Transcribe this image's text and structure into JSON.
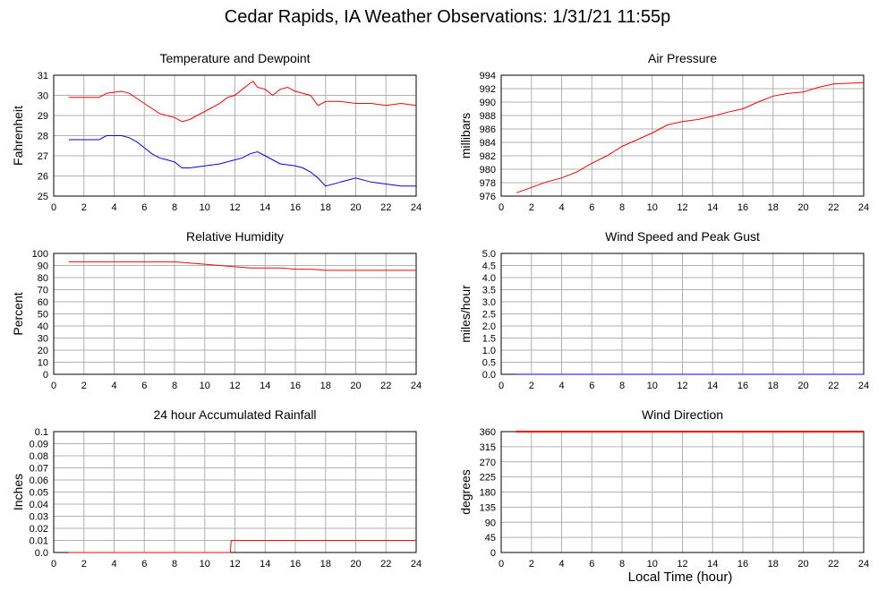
{
  "title": "Cedar Rapids, IA Weather Observations: 1/31/21 11:55p",
  "x_axis_label": "Local Time (hour)",
  "colors": {
    "red": "#ff0000",
    "blue": "#0000ff",
    "grid": "#b0b0b0"
  },
  "chart_data": [
    {
      "id": "temperature-dewpoint",
      "type": "line",
      "title": "Temperature and Dewpoint",
      "xlabel": "",
      "ylabel": "Fahrenheit",
      "xlim": [
        0,
        24
      ],
      "ylim": [
        25,
        31
      ],
      "xticks": [
        0,
        2,
        4,
        6,
        8,
        10,
        12,
        14,
        16,
        18,
        20,
        22,
        24
      ],
      "yticks": [
        25,
        26,
        27,
        28,
        29,
        30,
        31
      ],
      "grid": true,
      "series": [
        {
          "color": "red",
          "x": [
            1,
            2,
            3,
            3.5,
            4.5,
            5,
            6,
            7,
            8,
            8.5,
            9,
            9.5,
            10,
            11,
            11.5,
            12,
            12.5,
            13,
            13.2,
            13.5,
            14,
            14.5,
            15,
            15.5,
            16,
            17,
            17.5,
            18,
            19,
            20,
            21,
            22,
            23,
            24
          ],
          "y": [
            29.9,
            29.9,
            29.9,
            30.1,
            30.2,
            30.1,
            29.6,
            29.1,
            28.9,
            28.7,
            28.8,
            29.0,
            29.2,
            29.6,
            29.9,
            30.0,
            30.3,
            30.6,
            30.7,
            30.4,
            30.3,
            30.0,
            30.3,
            30.4,
            30.2,
            30.0,
            29.5,
            29.7,
            29.7,
            29.6,
            29.6,
            29.5,
            29.6,
            29.5
          ]
        },
        {
          "color": "blue",
          "x": [
            1,
            2,
            3,
            3.5,
            4.5,
            5,
            5.5,
            6,
            6.5,
            7,
            7.5,
            8,
            8.5,
            9,
            10,
            11,
            12,
            12.5,
            13,
            13.5,
            14,
            14.5,
            15,
            16,
            16.5,
            17,
            17.5,
            18,
            19,
            19.5,
            20,
            21,
            22,
            23,
            24
          ],
          "y": [
            27.8,
            27.8,
            27.8,
            28.0,
            28.0,
            27.9,
            27.7,
            27.4,
            27.1,
            26.9,
            26.8,
            26.7,
            26.4,
            26.4,
            26.5,
            26.6,
            26.8,
            26.9,
            27.1,
            27.2,
            27.0,
            26.8,
            26.6,
            26.5,
            26.4,
            26.2,
            25.9,
            25.5,
            25.7,
            25.8,
            25.9,
            25.7,
            25.6,
            25.5,
            25.5
          ]
        }
      ]
    },
    {
      "id": "air-pressure",
      "type": "line",
      "title": "Air Pressure",
      "xlabel": "",
      "ylabel": "millibars",
      "xlim": [
        0,
        24
      ],
      "ylim": [
        976,
        994
      ],
      "xticks": [
        0,
        2,
        4,
        6,
        8,
        10,
        12,
        14,
        16,
        18,
        20,
        22,
        24
      ],
      "yticks": [
        976,
        978,
        980,
        982,
        984,
        986,
        988,
        990,
        992,
        994
      ],
      "grid": true,
      "series": [
        {
          "color": "red",
          "x": [
            1,
            2,
            3,
            4,
            5,
            6,
            7,
            8,
            9,
            10,
            11,
            12,
            13,
            14,
            15,
            16,
            17,
            18,
            19,
            20,
            21,
            22,
            23,
            24
          ],
          "y": [
            976.5,
            977.3,
            978.1,
            978.7,
            979.6,
            980.9,
            982.0,
            983.4,
            984.4,
            985.4,
            986.6,
            987.1,
            987.4,
            987.9,
            988.5,
            989.0,
            990.0,
            990.9,
            991.3,
            991.5,
            992.2,
            992.7,
            992.8,
            992.9
          ]
        }
      ]
    },
    {
      "id": "relative-humidity",
      "type": "line",
      "title": "Relative Humidity",
      "xlabel": "",
      "ylabel": "Percent",
      "xlim": [
        0,
        24
      ],
      "ylim": [
        0,
        100
      ],
      "xticks": [
        0,
        2,
        4,
        6,
        8,
        10,
        12,
        14,
        16,
        18,
        20,
        22,
        24
      ],
      "yticks": [
        0,
        10,
        20,
        30,
        40,
        50,
        60,
        70,
        80,
        90,
        100
      ],
      "grid": true,
      "series": [
        {
          "color": "red",
          "x": [
            1,
            2,
            3,
            4,
            5,
            6,
            7,
            8,
            9,
            10,
            11,
            12,
            13,
            14,
            15,
            16,
            17,
            18,
            19,
            20,
            21,
            22,
            23,
            24
          ],
          "y": [
            93,
            93,
            93,
            93,
            93,
            93,
            93,
            93,
            92,
            91,
            90,
            89,
            88,
            88,
            88,
            87,
            87,
            86,
            86,
            86,
            86,
            86,
            86,
            86
          ]
        }
      ]
    },
    {
      "id": "wind-speed-gust",
      "type": "line",
      "title": "Wind Speed and Peak Gust",
      "xlabel": "",
      "ylabel": "miles/hour",
      "xlim": [
        0,
        24
      ],
      "ylim": [
        0,
        5
      ],
      "xticks": [
        0,
        2,
        4,
        6,
        8,
        10,
        12,
        14,
        16,
        18,
        20,
        22,
        24
      ],
      "yticks": [
        0.0,
        0.5,
        1.0,
        1.5,
        2.0,
        2.5,
        3.0,
        3.5,
        4.0,
        4.5,
        5.0
      ],
      "ytick_labels": [
        "0.0",
        "0.5",
        "1.0",
        "1.5",
        "2.0",
        "2.5",
        "3.0",
        "3.5",
        "4.0",
        "4.5",
        "5.0"
      ],
      "grid": true,
      "series": [
        {
          "color": "blue",
          "x": [
            1,
            24
          ],
          "y": [
            0,
            0
          ]
        }
      ]
    },
    {
      "id": "accumulated-rainfall",
      "type": "line",
      "title": "24 hour Accumulated Rainfall",
      "xlabel": "",
      "ylabel": "Inches",
      "xlim": [
        0,
        24
      ],
      "ylim": [
        0,
        0.1
      ],
      "xticks": [
        0,
        2,
        4,
        6,
        8,
        10,
        12,
        14,
        16,
        18,
        20,
        22,
        24
      ],
      "yticks": [
        0,
        0.01,
        0.02,
        0.03,
        0.04,
        0.05,
        0.06,
        0.07,
        0.08,
        0.09,
        0.1
      ],
      "ytick_labels": [
        "0.0",
        "0.01",
        "0.02",
        "0.03",
        "0.04",
        "0.05",
        "0.06",
        "0.07",
        "0.08",
        "0.09",
        "0.1"
      ],
      "grid": true,
      "series": [
        {
          "color": "red",
          "x": [
            1,
            11.7,
            11.75,
            24
          ],
          "y": [
            0,
            0,
            0.01,
            0.01
          ]
        }
      ]
    },
    {
      "id": "wind-direction",
      "type": "line",
      "title": "Wind Direction",
      "xlabel": "",
      "ylabel": "degrees",
      "xlim": [
        0,
        24
      ],
      "ylim": [
        0,
        360
      ],
      "xticks": [
        0,
        2,
        4,
        6,
        8,
        10,
        12,
        14,
        16,
        18,
        20,
        22,
        24
      ],
      "yticks": [
        0,
        45,
        90,
        135,
        180,
        225,
        270,
        315,
        360
      ],
      "grid": true,
      "series": [
        {
          "color": "red",
          "thick": true,
          "x": [
            1,
            24
          ],
          "y": [
            360,
            360
          ]
        }
      ]
    }
  ]
}
